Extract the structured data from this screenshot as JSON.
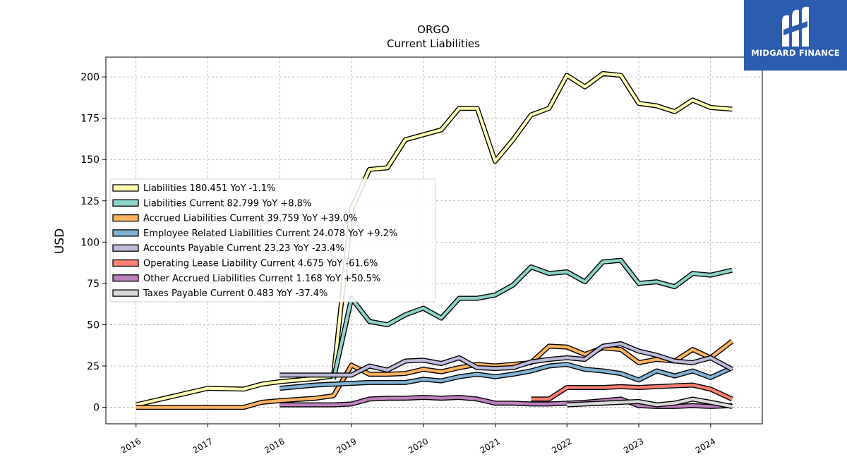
{
  "brand": {
    "name": "MIDGARD FINANCE",
    "logo_icon": "midgard-logo-icon",
    "bg_color": "#2b5cb0"
  },
  "chart_data": {
    "type": "line",
    "title": "ORGO",
    "subtitle": "Current  Liabilities",
    "ylabel": "USD",
    "xlabel": "",
    "ylim": [
      -10,
      212
    ],
    "xlim": [
      2015.58,
      2024.72
    ],
    "yticks": [
      0,
      25,
      50,
      75,
      100,
      125,
      150,
      175,
      200
    ],
    "xticks": [
      2016,
      2017,
      2018,
      2019,
      2020,
      2021,
      2022,
      2023,
      2024
    ],
    "grid": true,
    "legend_position": "center-left",
    "series": [
      {
        "name": "Liabilities",
        "legend": "Liabilities  180.451 YoY -1.1%",
        "color": "#ffffb3",
        "points": [
          [
            2016.0,
            1.5
          ],
          [
            2017.0,
            11.5
          ],
          [
            2017.5,
            11
          ],
          [
            2017.75,
            14
          ],
          [
            2018.0,
            15.5
          ],
          [
            2018.5,
            17.5
          ],
          [
            2018.75,
            19
          ],
          [
            2019.0,
            120
          ],
          [
            2019.25,
            144
          ],
          [
            2019.5,
            145
          ],
          [
            2019.75,
            162
          ],
          [
            2020.0,
            165
          ],
          [
            2020.25,
            168
          ],
          [
            2020.5,
            181
          ],
          [
            2020.75,
            181
          ],
          [
            2021.0,
            149
          ],
          [
            2021.25,
            162
          ],
          [
            2021.5,
            177
          ],
          [
            2021.75,
            181
          ],
          [
            2022.0,
            201
          ],
          [
            2022.25,
            194
          ],
          [
            2022.5,
            202
          ],
          [
            2022.75,
            201
          ],
          [
            2023.0,
            184
          ],
          [
            2023.25,
            182.5
          ],
          [
            2023.5,
            179
          ],
          [
            2023.75,
            186
          ],
          [
            2024.0,
            181.5
          ],
          [
            2024.3,
            180.5
          ]
        ]
      },
      {
        "name": "Liabilities Current",
        "legend": "Liabilities Current  82.799 YoY +8.8%",
        "color": "#8dd3c7",
        "points": [
          [
            2018.75,
            17
          ],
          [
            2019.0,
            66
          ],
          [
            2019.25,
            52
          ],
          [
            2019.5,
            50
          ],
          [
            2019.75,
            56
          ],
          [
            2020.0,
            60
          ],
          [
            2020.25,
            54
          ],
          [
            2020.5,
            66
          ],
          [
            2020.75,
            66
          ],
          [
            2021.0,
            68
          ],
          [
            2021.25,
            74
          ],
          [
            2021.5,
            85
          ],
          [
            2021.75,
            81
          ],
          [
            2022.0,
            82
          ],
          [
            2022.25,
            76
          ],
          [
            2022.5,
            88
          ],
          [
            2022.75,
            89
          ],
          [
            2023.0,
            75
          ],
          [
            2023.25,
            76
          ],
          [
            2023.5,
            73
          ],
          [
            2023.75,
            81
          ],
          [
            2024.0,
            80
          ],
          [
            2024.3,
            83
          ]
        ]
      },
      {
        "name": "Accrued Liabilities Current",
        "legend": "Accrued Liabilities Current  39.759 YoY +39.0%",
        "color": "#fdb462",
        "points": [
          [
            2016.0,
            0
          ],
          [
            2017.0,
            0
          ],
          [
            2017.5,
            0
          ],
          [
            2017.75,
            3
          ],
          [
            2018.0,
            4
          ],
          [
            2018.5,
            5.5
          ],
          [
            2018.75,
            7
          ],
          [
            2019.0,
            25.5
          ],
          [
            2019.25,
            20
          ],
          [
            2019.5,
            20
          ],
          [
            2019.75,
            20.5
          ],
          [
            2020.0,
            23
          ],
          [
            2020.25,
            21.5
          ],
          [
            2020.5,
            24
          ],
          [
            2020.75,
            26
          ],
          [
            2021.0,
            25
          ],
          [
            2021.5,
            27
          ],
          [
            2021.75,
            37
          ],
          [
            2022.0,
            36.5
          ],
          [
            2022.25,
            32
          ],
          [
            2022.5,
            36
          ],
          [
            2022.75,
            35
          ],
          [
            2023.0,
            27
          ],
          [
            2023.25,
            29
          ],
          [
            2023.5,
            28
          ],
          [
            2023.75,
            35
          ],
          [
            2024.0,
            30
          ],
          [
            2024.3,
            40
          ]
        ]
      },
      {
        "name": "Employee Related Liabilities Current",
        "legend": "Employee Related Liabilities Current  24.078 YoY +9.2%",
        "color": "#80b1d3",
        "points": [
          [
            2018.0,
            11.5
          ],
          [
            2018.5,
            13.5
          ],
          [
            2018.75,
            14
          ],
          [
            2019.0,
            14.5
          ],
          [
            2019.25,
            15
          ],
          [
            2019.5,
            15
          ],
          [
            2019.75,
            15
          ],
          [
            2020.0,
            17
          ],
          [
            2020.25,
            16
          ],
          [
            2020.5,
            18.5
          ],
          [
            2020.75,
            20
          ],
          [
            2021.0,
            18.5
          ],
          [
            2021.25,
            20
          ],
          [
            2021.5,
            22
          ],
          [
            2021.75,
            25
          ],
          [
            2022.0,
            26
          ],
          [
            2022.25,
            23
          ],
          [
            2022.5,
            22
          ],
          [
            2022.75,
            20.5
          ],
          [
            2023.0,
            16.5
          ],
          [
            2023.25,
            22
          ],
          [
            2023.5,
            19
          ],
          [
            2023.75,
            22
          ],
          [
            2024.0,
            18
          ],
          [
            2024.3,
            24
          ]
        ]
      },
      {
        "name": "Accounts Payable Current",
        "legend": "Accounts Payable Current  23.23 YoY -23.4%",
        "color": "#bebada",
        "points": [
          [
            2018.0,
            19.5
          ],
          [
            2018.5,
            19.5
          ],
          [
            2018.75,
            19.5
          ],
          [
            2019.0,
            19.5
          ],
          [
            2019.25,
            25
          ],
          [
            2019.5,
            22.5
          ],
          [
            2019.75,
            28
          ],
          [
            2020.0,
            28.5
          ],
          [
            2020.25,
            26.5
          ],
          [
            2020.5,
            30
          ],
          [
            2020.75,
            24
          ],
          [
            2021.0,
            23.5
          ],
          [
            2021.25,
            24
          ],
          [
            2021.5,
            27.5
          ],
          [
            2021.75,
            29
          ],
          [
            2022.0,
            30
          ],
          [
            2022.25,
            29
          ],
          [
            2022.5,
            37
          ],
          [
            2022.75,
            38.5
          ],
          [
            2023.0,
            34
          ],
          [
            2023.25,
            31.5
          ],
          [
            2023.5,
            28
          ],
          [
            2023.75,
            27
          ],
          [
            2024.0,
            30
          ],
          [
            2024.3,
            23
          ]
        ]
      },
      {
        "name": "Operating Lease Liability Current",
        "legend": "Operating Lease Liability Current  4.675 YoY -61.6%",
        "color": "#fb8072",
        "points": [
          [
            2021.5,
            5
          ],
          [
            2021.75,
            5
          ],
          [
            2022.0,
            12
          ],
          [
            2022.25,
            12
          ],
          [
            2022.5,
            12
          ],
          [
            2022.75,
            12.5
          ],
          [
            2023.0,
            12
          ],
          [
            2023.25,
            12.5
          ],
          [
            2023.5,
            13
          ],
          [
            2023.75,
            13.5
          ],
          [
            2024.0,
            11
          ],
          [
            2024.3,
            5
          ]
        ]
      },
      {
        "name": "Other Accrued Liabilities Current",
        "legend": "Other Accrued Liabilities Current  1.168 YoY +50.5%",
        "color": "#bc80bd",
        "points": [
          [
            2018.0,
            1.5
          ],
          [
            2018.5,
            1.5
          ],
          [
            2018.75,
            1.5
          ],
          [
            2019.0,
            2
          ],
          [
            2019.25,
            5
          ],
          [
            2019.5,
            5.5
          ],
          [
            2019.75,
            5.5
          ],
          [
            2020.0,
            6
          ],
          [
            2020.25,
            5.5
          ],
          [
            2020.5,
            6
          ],
          [
            2020.75,
            5
          ],
          [
            2021.0,
            2.5
          ],
          [
            2021.25,
            2.5
          ],
          [
            2021.5,
            2
          ],
          [
            2021.75,
            2
          ],
          [
            2022.0,
            2.5
          ],
          [
            2022.25,
            3
          ],
          [
            2022.5,
            4
          ],
          [
            2022.75,
            5
          ],
          [
            2023.0,
            1
          ],
          [
            2023.25,
            0.5
          ],
          [
            2023.5,
            0.5
          ],
          [
            2023.75,
            1
          ],
          [
            2024.0,
            0.5
          ],
          [
            2024.3,
            1
          ]
        ]
      },
      {
        "name": "Taxes Payable Current",
        "legend": "Taxes Payable Current  0.483 YoY -37.4%",
        "color": "#d9d9d9",
        "points": [
          [
            2022.0,
            1.5
          ],
          [
            2022.25,
            2
          ],
          [
            2022.5,
            2.5
          ],
          [
            2022.75,
            3
          ],
          [
            2023.0,
            3.5
          ],
          [
            2023.25,
            1.5
          ],
          [
            2023.5,
            2.5
          ],
          [
            2023.75,
            5
          ],
          [
            2024.0,
            3
          ],
          [
            2024.3,
            0.5
          ]
        ]
      }
    ]
  }
}
